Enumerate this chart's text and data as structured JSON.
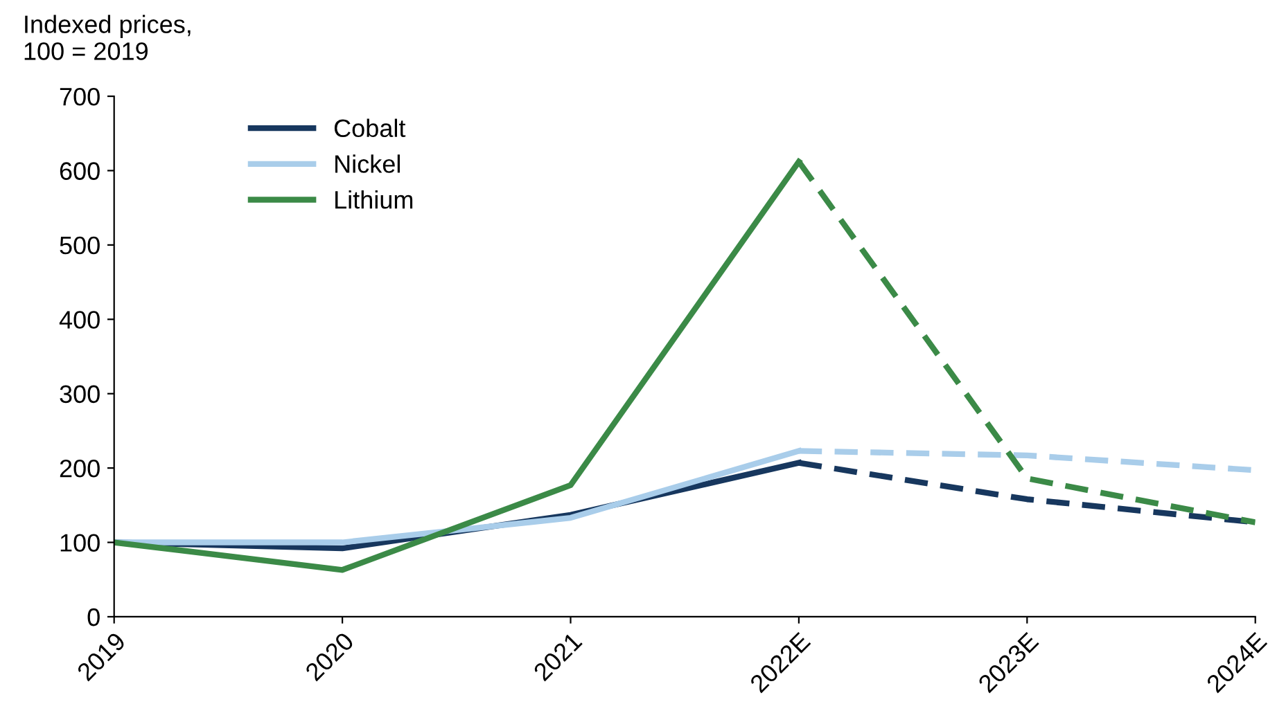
{
  "chart_data": {
    "type": "line",
    "ylabel": "Indexed prices,\n100 = 2019",
    "categories": [
      "2019",
      "2020",
      "2021",
      "2022E",
      "2023E",
      "2024E"
    ],
    "series": [
      {
        "name": "Cobalt",
        "color": "#17375e",
        "line_style": "solid",
        "values": [
          100,
          92,
          137,
          207,
          null,
          null
        ]
      },
      {
        "name": "Nickel",
        "color": "#a9cdea",
        "line_style": "solid",
        "values": [
          100,
          100,
          133,
          223,
          null,
          null
        ]
      },
      {
        "name": "Lithium",
        "color": "#3b8a47",
        "line_style": "solid",
        "values": [
          100,
          63,
          177,
          612,
          null,
          null
        ]
      },
      {
        "color": "#17375e",
        "line_style": "dashed",
        "values": [
          null,
          null,
          null,
          207,
          158,
          127
        ]
      },
      {
        "color": "#a9cdea",
        "line_style": "dashed",
        "values": [
          null,
          null,
          null,
          223,
          217,
          197
        ]
      },
      {
        "color": "#3b8a47",
        "line_style": "dashed",
        "values": [
          null,
          null,
          null,
          612,
          186,
          127
        ]
      }
    ],
    "ylim": [
      0,
      700
    ],
    "yticks": [
      0,
      100,
      200,
      300,
      400,
      500,
      600,
      700
    ],
    "grid": false,
    "legend": "top left",
    "marker": "none"
  }
}
